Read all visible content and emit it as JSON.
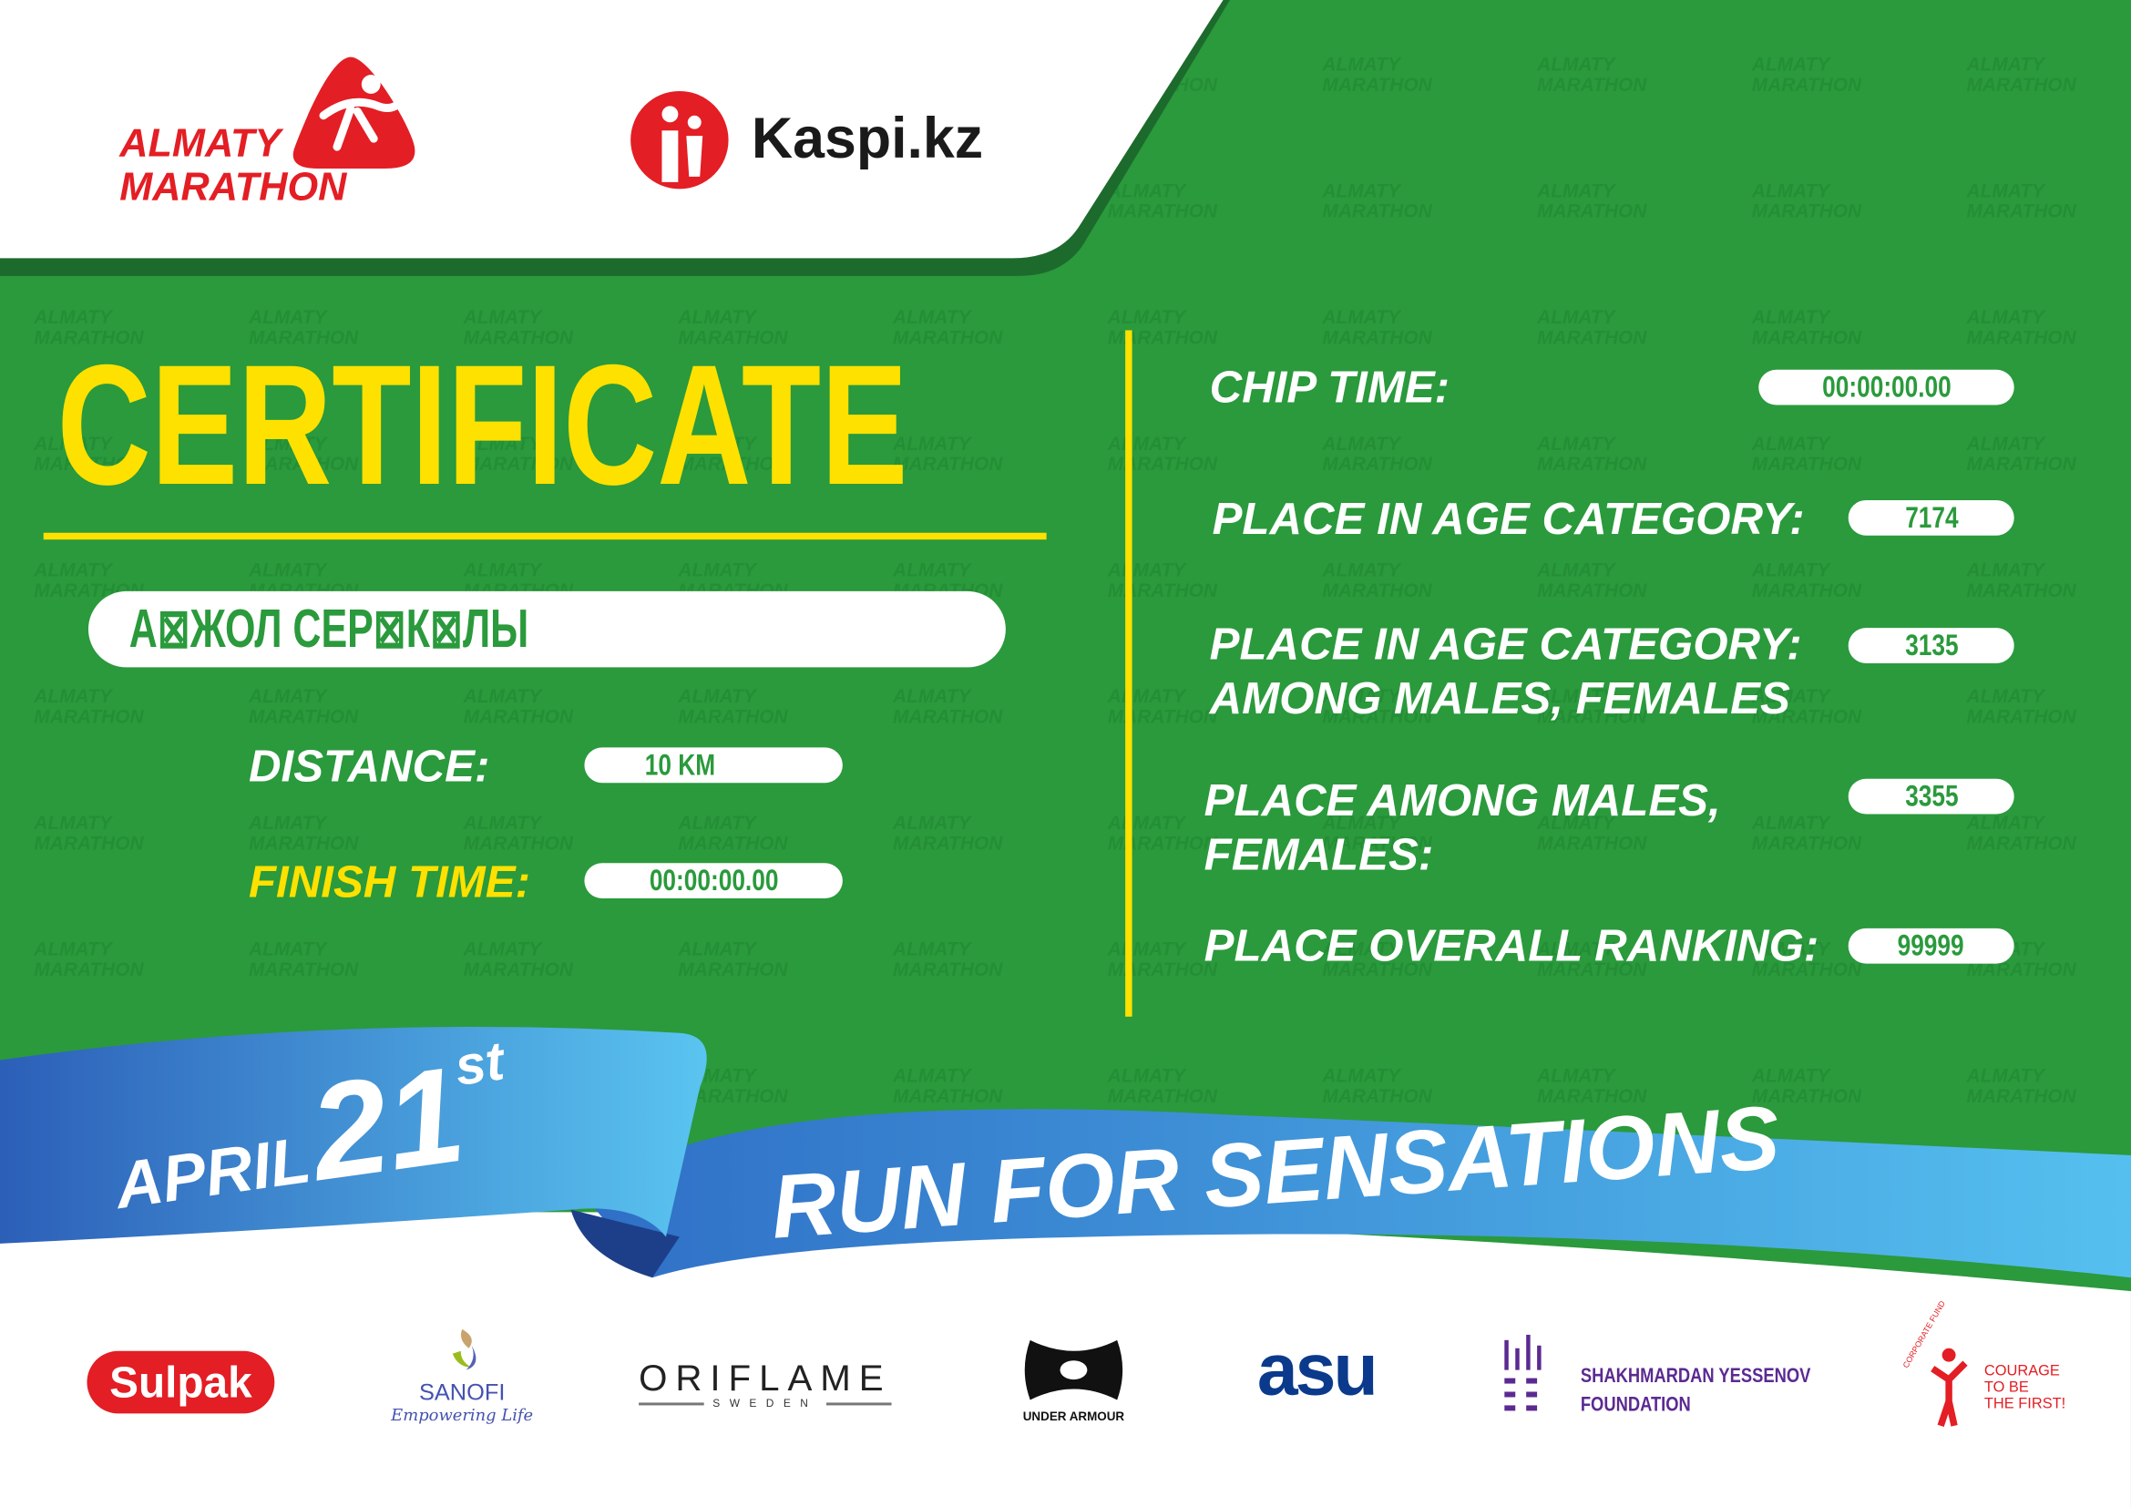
{
  "header": {
    "brand_logo_text": [
      "ALMATY",
      "MARATHON"
    ],
    "sponsor_logo_text": "Kaspi.kz"
  },
  "certificate": {
    "title": "CERTIFICATE",
    "name": "А⊠ЖОЛ СЕР⊠К⊠ЛЫ",
    "distance_label": "DISTANCE:",
    "distance_value": "10 KM",
    "finish_time_label": "FINISH TIME:",
    "finish_time_value": "00:00:00.00",
    "chip_time_label": "CHIP TIME:",
    "chip_time_value": "00:00:00.00",
    "age_category_label": "PLACE IN AGE CATEGORY:",
    "age_category_value": "7174",
    "age_category_gender_label_1": "PLACE IN AGE CATEGORY:",
    "age_category_gender_label_2": "AMONG MALES, FEMALES",
    "age_category_gender_value": "3135",
    "gender_label_1": "PLACE AMONG MALES,",
    "gender_label_2": "FEMALES:",
    "gender_value": "3355",
    "overall_label": "PLACE OVERALL RANKING:",
    "overall_value": "99999"
  },
  "banner": {
    "month": "APRIL",
    "day": "21",
    "suffix": "st",
    "slogan": "RUN FOR SENSATIONS"
  },
  "sponsors": {
    "sulpak": "Sulpak",
    "sanofi": "SANOFI",
    "sanofi_tagline": "Empowering Life",
    "oriflame": "ORIFLAME",
    "oriflame_sub": "SWEDEN",
    "under_armour": "UNDER ARMOUR",
    "asu": "asu",
    "yessenov_1": "SHAKHMARDAN YESSENOV",
    "yessenov_2": "FOUNDATION",
    "courage_arc": "CORPORATE FUND",
    "courage_1": "COURAGE",
    "courage_2": "TO BE",
    "courage_3": "THE FIRST!"
  },
  "colors": {
    "green": "#2a9a3c",
    "yellow": "#ffe100",
    "red": "#e31e24",
    "blue": "#2f74c8",
    "purple": "#5b2a91"
  }
}
